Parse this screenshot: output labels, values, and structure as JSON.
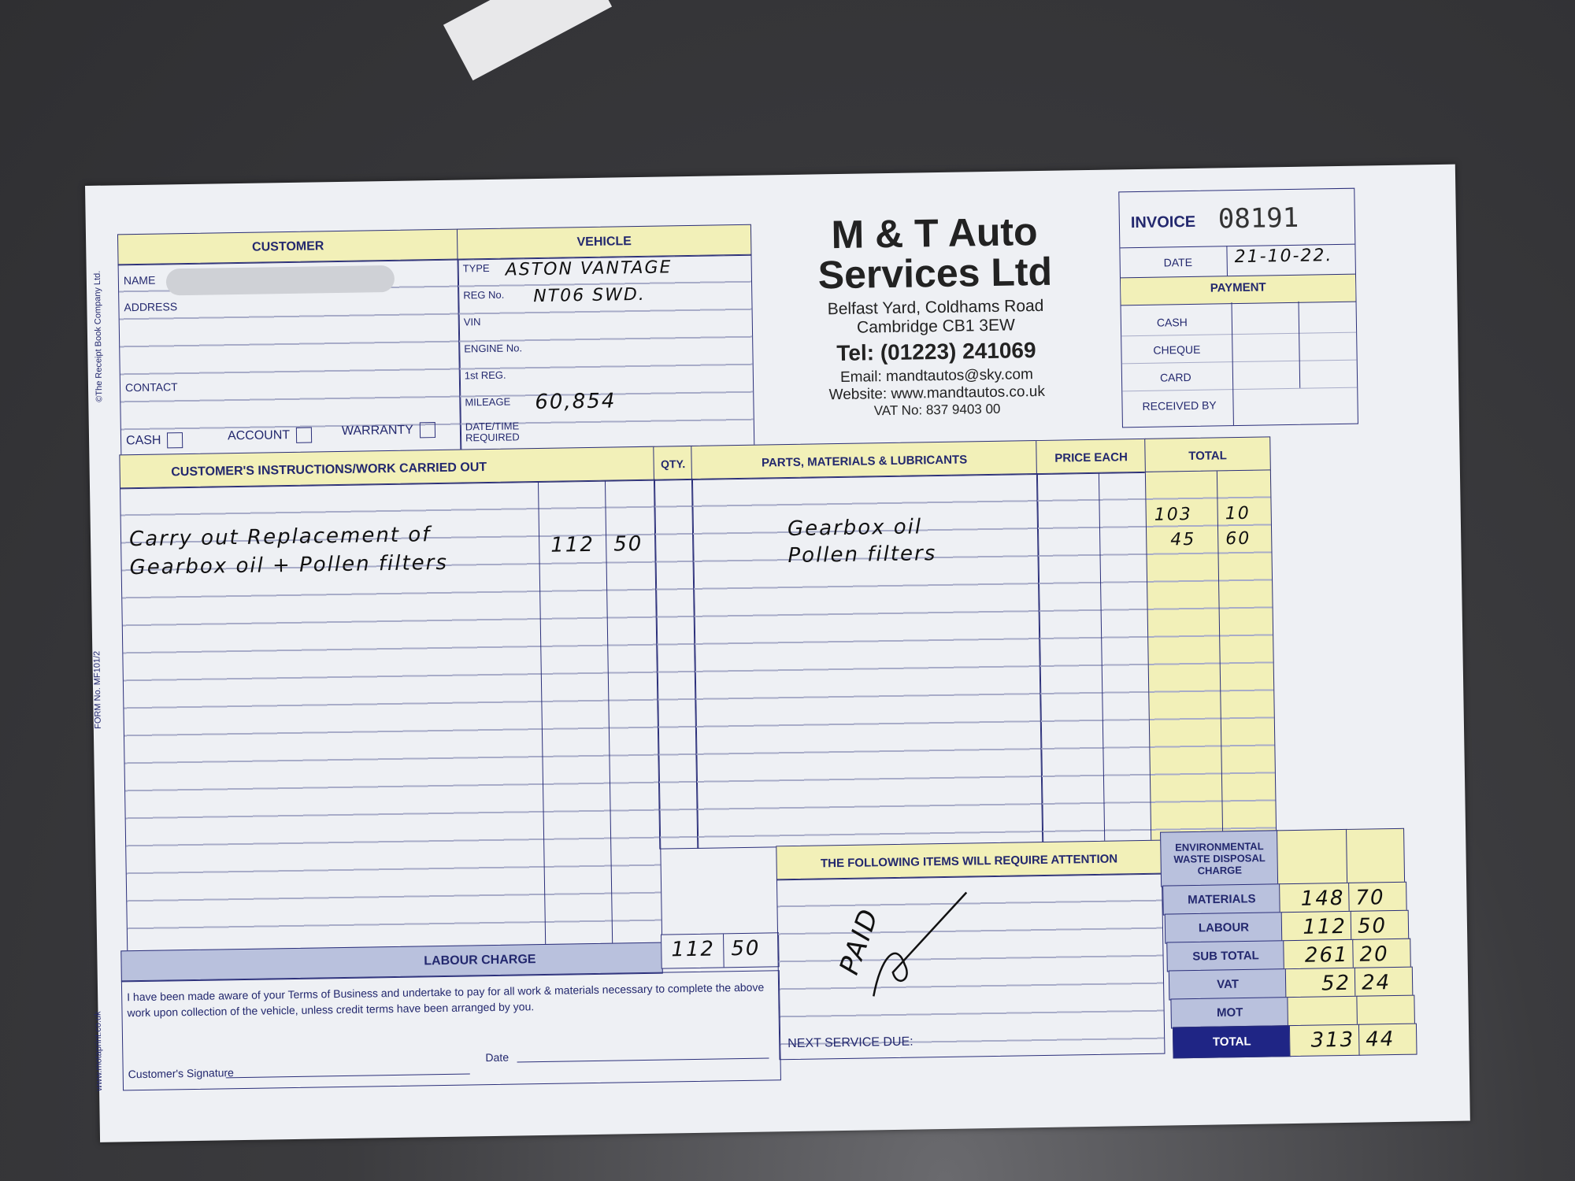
{
  "form": {
    "copyright": "©The Receipt Book Company Ltd.",
    "form_no": "FORM No. MF101/2",
    "printer": "www.motaprint.co.uk"
  },
  "company": {
    "name_line1": "M & T Auto",
    "name_line2": "Services Ltd",
    "address1": "Belfast Yard, Coldhams Road",
    "address2": "Cambridge CB1 3EW",
    "tel": "Tel: (01223) 241069",
    "email": "Email: mandtautos@sky.com",
    "website": "Website: www.mandtautos.co.uk",
    "vat": "VAT No: 837 9403 00"
  },
  "invoice": {
    "label": "INVOICE",
    "number": "08191",
    "date_label": "DATE",
    "date": "21-10-22."
  },
  "payment": {
    "header": "PAYMENT",
    "methods": [
      "CASH",
      "CHEQUE",
      "CARD"
    ],
    "received_by": "RECEIVED BY"
  },
  "customer": {
    "header": "CUSTOMER",
    "name_label": "NAME",
    "address_label": "ADDRESS",
    "contact_label": "CONTACT",
    "options": [
      "CASH",
      "ACCOUNT",
      "WARRANTY"
    ]
  },
  "vehicle": {
    "header": "VEHICLE",
    "fields": [
      {
        "label": "TYPE",
        "value": "ASTON VANTAGE"
      },
      {
        "label": "REG No.",
        "value": "NT06 SWD."
      },
      {
        "label": "VIN",
        "value": ""
      },
      {
        "label": "ENGINE No.",
        "value": ""
      },
      {
        "label": "1st REG.",
        "value": ""
      },
      {
        "label": "MILEAGE",
        "value": "60,854"
      },
      {
        "label": "DATE/TIME REQUIRED",
        "value": ""
      }
    ]
  },
  "work": {
    "header": "CUSTOMER'S INSTRUCTIONS/WORK CARRIED OUT",
    "line1": "Carry out Replacement of",
    "line2": "Gearbox oil + Pollen filters",
    "pounds": "112",
    "pence": "50",
    "labour_label": "LABOUR CHARGE",
    "labour_pounds": "112",
    "labour_pence": "50"
  },
  "parts": {
    "qty_header": "QTY.",
    "header": "PARTS, MATERIALS & LUBRICANTS",
    "price_header": "PRICE EACH",
    "total_header": "TOTAL",
    "items": [
      {
        "desc": "Gearbox oil",
        "pounds": "103",
        "pence": "10"
      },
      {
        "desc": "Pollen filters",
        "pounds": "45",
        "pence": "60"
      }
    ]
  },
  "attention": {
    "header": "THE FOLLOWING ITEMS WILL REQUIRE ATTENTION",
    "note": "PAID",
    "next_service": "NEXT SERVICE DUE:"
  },
  "totals": [
    {
      "label": "ENVIRONMENTAL WASTE DISPOSAL CHARGE",
      "pounds": "",
      "pence": ""
    },
    {
      "label": "MATERIALS",
      "pounds": "148",
      "pence": "70"
    },
    {
      "label": "LABOUR",
      "pounds": "112",
      "pence": "50"
    },
    {
      "label": "SUB TOTAL",
      "pounds": "261",
      "pence": "20"
    },
    {
      "label": "VAT",
      "pounds": "52",
      "pence": "24"
    },
    {
      "label": "MOT",
      "pounds": "",
      "pence": ""
    },
    {
      "label": "TOTAL",
      "pounds": "313",
      "pence": "44"
    }
  ],
  "terms": {
    "text": "I have been made aware of your Terms of Business and undertake to pay for all work & materials necessary to complete the above work upon collection of the vehicle, unless credit terms have been arranged by you.",
    "signature_label": "Customer's Signature",
    "date_label": "Date"
  },
  "colors": {
    "ink": "#23286e",
    "yellow": "#f2f0b8",
    "blue_band": "#b9c1dd",
    "total_band": "#1f2585"
  }
}
